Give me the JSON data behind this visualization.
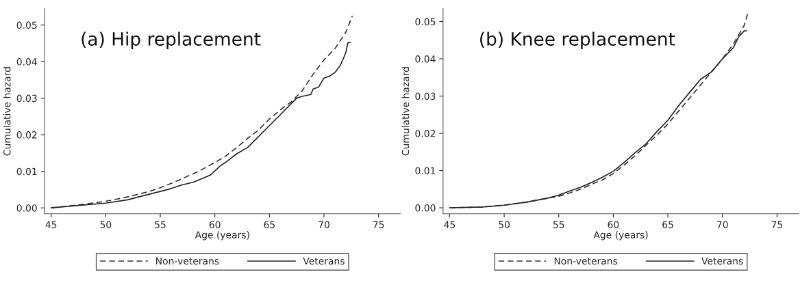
{
  "chart_data": [
    {
      "type": "line",
      "title": "(a) Hip replacement",
      "xlabel": "Age (years)",
      "ylabel": "Cumulative hazard",
      "xlim": [
        44.4,
        77
      ],
      "ylim": [
        -0.0016,
        0.0545
      ],
      "xticks": [
        45,
        50,
        55,
        60,
        65,
        70,
        75
      ],
      "yticks": [
        {
          "value": 0,
          "label": "0.00"
        },
        {
          "value": 0.01,
          "label": "0.01"
        },
        {
          "value": 0.02,
          "label": "0.02"
        },
        {
          "value": 0.03,
          "label": "0.03"
        },
        {
          "value": 0.04,
          "label": "0.04"
        },
        {
          "value": 0.05,
          "label": "0.05"
        }
      ],
      "grid": false,
      "legend": "bottom",
      "marker": "none",
      "series": [
        {
          "name": "Non-veterans",
          "color": "#333333",
          "line_style": "dashed",
          "x": [
            45,
            48,
            50,
            52,
            54,
            55,
            56,
            57,
            58,
            59,
            60,
            61,
            62,
            63,
            64,
            65,
            66,
            67,
            68,
            69,
            70,
            71,
            72,
            72.6
          ],
          "values": [
            0,
            0.001,
            0.0018,
            0.003,
            0.0045,
            0.0055,
            0.0067,
            0.008,
            0.0093,
            0.0108,
            0.0124,
            0.0142,
            0.0165,
            0.019,
            0.0213,
            0.0243,
            0.0268,
            0.029,
            0.032,
            0.0365,
            0.0405,
            0.0435,
            0.048,
            0.0525
          ]
        },
        {
          "name": "Veterans",
          "color": "#222222",
          "line_style": "solid",
          "x": [
            45,
            48,
            50,
            52,
            53,
            55,
            56,
            57,
            58,
            59,
            59.6,
            60.5,
            61,
            62,
            63,
            64,
            65,
            66,
            67,
            67.5,
            68,
            68.8,
            69,
            69.5,
            70,
            70.5,
            71,
            71.5,
            71.8,
            72,
            72.2,
            72.4
          ],
          "values": [
            0,
            0.0008,
            0.0013,
            0.0022,
            0.003,
            0.0045,
            0.0053,
            0.0063,
            0.007,
            0.0082,
            0.009,
            0.0115,
            0.0125,
            0.0148,
            0.0165,
            0.0195,
            0.0225,
            0.0255,
            0.0285,
            0.03,
            0.0305,
            0.031,
            0.0325,
            0.033,
            0.0355,
            0.036,
            0.037,
            0.039,
            0.041,
            0.0425,
            0.0452,
            0.0452
          ]
        }
      ]
    },
    {
      "type": "line",
      "title": "(b) Knee replacement",
      "xlabel": "Age (years)",
      "ylabel": "Cumulative hazard",
      "xlim": [
        44.4,
        77
      ],
      "ylim": [
        -0.0016,
        0.0535
      ],
      "xticks": [
        45,
        50,
        55,
        60,
        65,
        70,
        75
      ],
      "yticks": [
        {
          "value": 0,
          "label": "0.00"
        },
        {
          "value": 0.01,
          "label": "0.01"
        },
        {
          "value": 0.02,
          "label": "0.02"
        },
        {
          "value": 0.03,
          "label": "0.03"
        },
        {
          "value": 0.04,
          "label": "0.04"
        },
        {
          "value": 0.05,
          "label": "0.05"
        }
      ],
      "grid": false,
      "legend": "bottom",
      "marker": "none",
      "series": [
        {
          "name": "Non-veterans",
          "color": "#333333",
          "line_style": "dashed",
          "x": [
            45,
            48,
            50,
            52,
            54,
            55,
            56,
            57,
            58,
            59,
            60,
            61,
            62,
            63,
            64,
            65,
            66,
            67,
            68,
            69,
            70,
            71,
            72,
            72.3
          ],
          "values": [
            0,
            0.0002,
            0.0007,
            0.0015,
            0.0026,
            0.0031,
            0.004,
            0.005,
            0.0063,
            0.0075,
            0.0092,
            0.0115,
            0.014,
            0.0168,
            0.0195,
            0.0225,
            0.026,
            0.0295,
            0.033,
            0.0365,
            0.04,
            0.044,
            0.049,
            0.052
          ]
        },
        {
          "name": "Veterans",
          "color": "#222222",
          "line_style": "solid",
          "x": [
            45,
            48,
            50,
            52,
            54,
            55,
            56,
            57,
            58,
            59,
            60,
            61,
            62,
            63,
            64,
            65,
            66,
            67,
            68,
            69,
            70,
            70.5,
            71,
            71.5,
            72,
            72.2
          ],
          "values": [
            0,
            0.0002,
            0.0007,
            0.0015,
            0.0026,
            0.0034,
            0.0045,
            0.0055,
            0.0068,
            0.0082,
            0.0098,
            0.0122,
            0.0148,
            0.0172,
            0.0205,
            0.0235,
            0.0275,
            0.031,
            0.0345,
            0.0365,
            0.04,
            0.0415,
            0.043,
            0.046,
            0.0475,
            0.0475
          ]
        }
      ]
    }
  ]
}
